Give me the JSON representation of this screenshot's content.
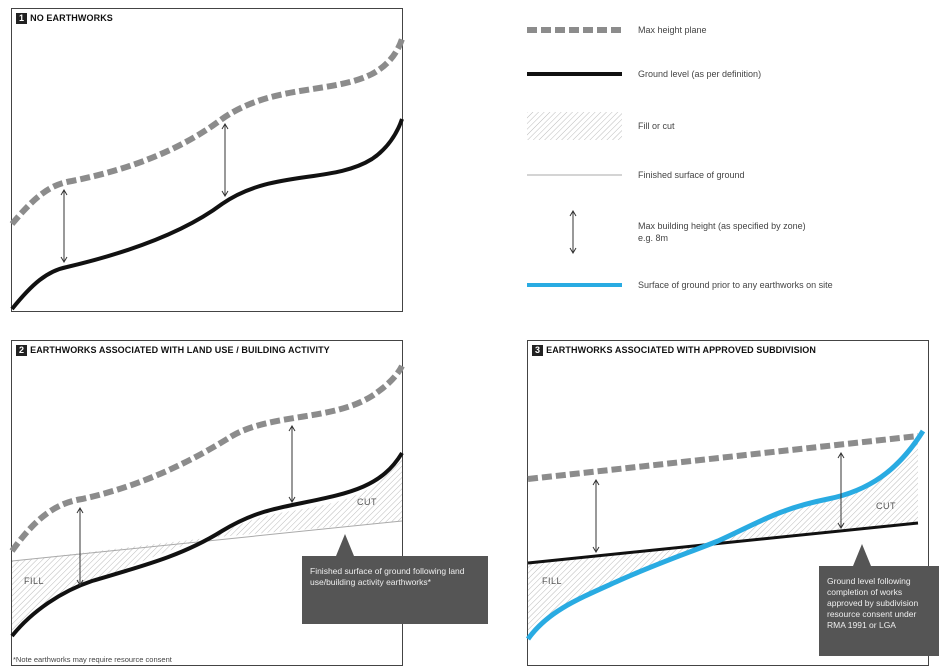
{
  "panels": [
    {
      "number": "1",
      "title": "NO EARTHWORKS"
    },
    {
      "number": "2",
      "title": "EARTHWORKS ASSOCIATED WITH LAND USE / BUILDING ACTIVITY",
      "labels": {
        "fill": "FILL",
        "cut": "CUT"
      },
      "callout": "Finished surface of ground following land use/building activity earthworks*"
    },
    {
      "number": "3",
      "title": "EARTHWORKS ASSOCIATED WITH APPROVED SUBDIVISION",
      "labels": {
        "fill": "FILL",
        "cut": "CUT"
      },
      "callout": "Ground level following completion of works approved by subdivision resource consent under RMA 1991 or LGA"
    }
  ],
  "legend": [
    {
      "key": "max-height-plane",
      "label": "Max height plane",
      "color": "#8c8c8c"
    },
    {
      "key": "ground-level",
      "label": "Ground level (as per definition)",
      "color": "#111111"
    },
    {
      "key": "fill-or-cut",
      "label": "Fill or cut",
      "color": "#bbbbbb"
    },
    {
      "key": "finished-surface",
      "label": "Finished surface of ground",
      "color": "#aaaaaa"
    },
    {
      "key": "max-building-height",
      "label": "Max building height (as specified by zone)",
      "label2": "e.g. 8m",
      "color": "#333333"
    },
    {
      "key": "prior-surface",
      "label": "Surface of ground prior to any earthworks on site",
      "color": "#29abe2"
    }
  ],
  "note": "*Note earthworks may require resource consent",
  "colors": {
    "blue": "#29abe2",
    "dash": "#8c8c8c",
    "ground": "#111111",
    "callout_bg": "#555555"
  }
}
